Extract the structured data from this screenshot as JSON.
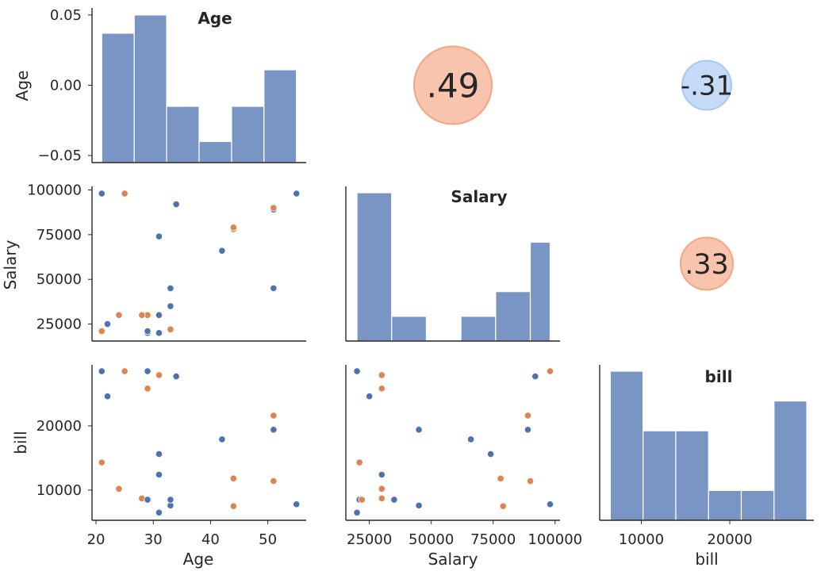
{
  "chart_data": {
    "type": "scatter",
    "variables": [
      "Age",
      "Salary",
      "bill"
    ],
    "colors": {
      "hist": "#4c72b0",
      "series_a": "#4c72b0",
      "series_b": "#dd8452",
      "positive": "#f4a582",
      "negative": "#a6c8f5"
    },
    "diagonal_titles": [
      "Age",
      "Salary",
      "bill"
    ],
    "axis_labels": {
      "x": [
        "Age",
        "Salary",
        "bill"
      ],
      "y": [
        "Age",
        "Salary",
        "bill"
      ]
    },
    "age_hist": {
      "bin_edges": [
        21,
        26.67,
        32.33,
        38,
        43.67,
        49.33,
        55
      ],
      "heights": [
        0.037,
        0.05,
        -0.015,
        -0.04,
        -0.015,
        0.011
      ],
      "ylim": [
        -0.055,
        0.055
      ],
      "ticks": [
        0.05,
        0.0,
        -0.05
      ],
      "tick_labels": [
        "0.05",
        "0.00",
        "−0.05"
      ]
    },
    "salary_hist": {
      "bin_edges": [
        20000,
        34000,
        48000,
        62000,
        76000,
        90000,
        98000
      ],
      "counts": [
        6,
        1,
        0,
        1,
        2,
        4
      ]
    },
    "bill_hist": {
      "bin_edges": [
        6500,
        10200,
        13900,
        17600,
        21300,
        25000,
        28700
      ],
      "counts": [
        5,
        3,
        3,
        1,
        1,
        4
      ]
    },
    "correlations": [
      {
        "row": 0,
        "col": 1,
        "label": ".49",
        "value": 0.49
      },
      {
        "row": 0,
        "col": 2,
        "label": "-.31",
        "value": -0.31
      },
      {
        "row": 1,
        "col": 2,
        "label": ".33",
        "value": 0.33
      }
    ],
    "ticks": {
      "age_x": [
        20,
        30,
        40,
        50
      ],
      "age_x_labels": [
        "20",
        "30",
        "40",
        "50"
      ],
      "age_xlim": [
        19.3,
        56.7
      ],
      "salary": [
        25000,
        50000,
        75000,
        100000
      ],
      "salary_labels": [
        "25000",
        "50000",
        "75000",
        "100000"
      ],
      "salary_lim": [
        15500,
        102000
      ],
      "bill": [
        10000,
        20000
      ],
      "bill_labels": [
        "10000",
        "20000"
      ],
      "bill_lim": [
        5300,
        29500
      ]
    },
    "points": [
      {
        "age": 21,
        "salary": 98000,
        "bill": 28500,
        "g": "a"
      },
      {
        "age": 25,
        "salary": 98000,
        "bill": 28500,
        "g": "b"
      },
      {
        "age": 29,
        "salary": 20000,
        "bill": 28500,
        "g": "a"
      },
      {
        "age": 34,
        "salary": 92000,
        "bill": 27700,
        "g": "a"
      },
      {
        "age": 31,
        "salary": 30000,
        "bill": 27900,
        "g": "b"
      },
      {
        "age": 29,
        "salary": 30000,
        "bill": 25800,
        "g": "b"
      },
      {
        "age": 22,
        "salary": 25000,
        "bill": 24600,
        "g": "a"
      },
      {
        "age": 51,
        "salary": 89000,
        "bill": 21600,
        "g": "b"
      },
      {
        "age": 51,
        "salary": 89000,
        "bill": 19400,
        "g": "a"
      },
      {
        "age": 44,
        "salary": 78000,
        "bill": 11800,
        "g": "b"
      },
      {
        "age": 42,
        "salary": 66000,
        "bill": 17900,
        "g": "a"
      },
      {
        "age": 21,
        "salary": 21000,
        "bill": 14300,
        "g": "b"
      },
      {
        "age": 31,
        "salary": 74000,
        "bill": 15600,
        "g": "a"
      },
      {
        "age": 51,
        "salary": 90000,
        "bill": 11400,
        "g": "b"
      },
      {
        "age": 31,
        "salary": 30000,
        "bill": 12400,
        "g": "a"
      },
      {
        "age": 24,
        "salary": 30000,
        "bill": 10200,
        "g": "b"
      },
      {
        "age": 28,
        "salary": 30000,
        "bill": 8700,
        "g": "b"
      },
      {
        "age": 29,
        "salary": 21000,
        "bill": 8500,
        "g": "a"
      },
      {
        "age": 33,
        "salary": 22000,
        "bill": 8500,
        "g": "b"
      },
      {
        "age": 33,
        "salary": 45000,
        "bill": 7600,
        "g": "a"
      },
      {
        "age": 44,
        "salary": 79000,
        "bill": 7500,
        "g": "b"
      },
      {
        "age": 55,
        "salary": 98000,
        "bill": 7800,
        "g": "a"
      },
      {
        "age": 51,
        "salary": 45000,
        "bill": 19400,
        "g": "a"
      },
      {
        "age": 31,
        "salary": 20000,
        "bill": 6500,
        "g": "a"
      },
      {
        "age": 33,
        "salary": 35000,
        "bill": 8500,
        "g": "a"
      }
    ]
  }
}
